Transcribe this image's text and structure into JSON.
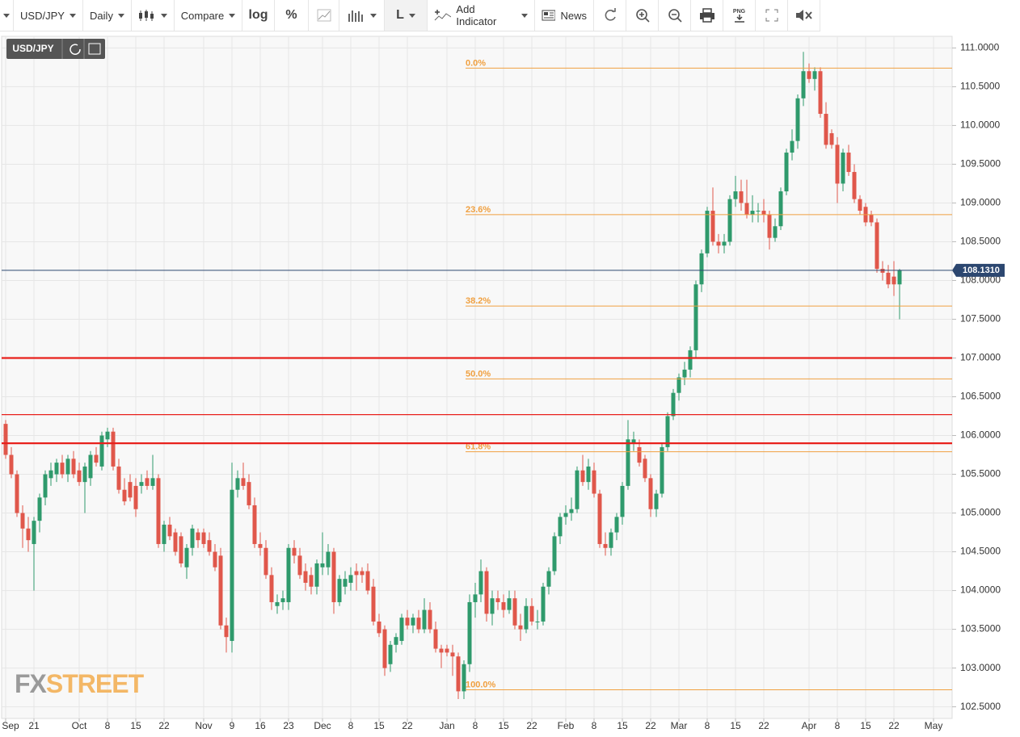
{
  "toolbar": {
    "symbol": "USD/JPY",
    "interval": "Daily",
    "compare": "Compare",
    "log": "log",
    "percent": "%",
    "line": "L",
    "add_indicator": "Add Indicator",
    "news": "News",
    "png": "PNG"
  },
  "watermark": [
    "FX",
    "STREET"
  ],
  "chart_data": {
    "type": "candlestick",
    "symbol": "USD/JPY",
    "up_color": "#2f9a6c",
    "down_color": "#e0574b",
    "grid": true,
    "ylim": [
      102.35,
      111.15
    ],
    "yticks": [
      {
        "value": 102.5,
        "label": "102.5000"
      },
      {
        "value": 103,
        "label": "103.0000"
      },
      {
        "value": 103.5,
        "label": "103.5000"
      },
      {
        "value": 104,
        "label": "104.0000"
      },
      {
        "value": 104.5,
        "label": "104.5000"
      },
      {
        "value": 105,
        "label": "105.0000"
      },
      {
        "value": 105.5,
        "label": "105.5000"
      },
      {
        "value": 106,
        "label": "106.0000"
      },
      {
        "value": 106.5,
        "label": "106.5000"
      },
      {
        "value": 107,
        "label": "107.0000"
      },
      {
        "value": 107.5,
        "label": "107.5000"
      },
      {
        "value": 108,
        "label": "108.0000"
      },
      {
        "value": 108.5,
        "label": "108.5000"
      },
      {
        "value": 109,
        "label": "109.0000"
      },
      {
        "value": 109.5,
        "label": "109.5000"
      },
      {
        "value": 110,
        "label": "110.0000"
      },
      {
        "value": 110.5,
        "label": "110.5000"
      },
      {
        "value": 111,
        "label": "111.0000"
      }
    ],
    "last_price": {
      "value": 108.131,
      "label": "108.1310",
      "color": "#2c4770"
    },
    "horizontal_lines": [
      {
        "value": 107.0,
        "color": "#e8201c",
        "bold": true
      },
      {
        "value": 106.27,
        "color": "#e8201c",
        "bold": false
      },
      {
        "value": 105.9,
        "color": "#e8201c",
        "bold": true
      }
    ],
    "fib_color": "#f0a040",
    "fib_levels": [
      {
        "label": "0.0%",
        "value": 110.74
      },
      {
        "label": "23.6%",
        "value": 108.85
      },
      {
        "label": "38.2%",
        "value": 107.67
      },
      {
        "label": "50.0%",
        "value": 106.73
      },
      {
        "label": "61.8%",
        "value": 105.79
      },
      {
        "label": "100.0%",
        "value": 102.72
      }
    ],
    "categories": [
      "Sep",
      null,
      null,
      null,
      null,
      "21",
      null,
      null,
      null,
      null,
      null,
      null,
      null,
      "Oct",
      null,
      null,
      null,
      null,
      "8",
      null,
      null,
      null,
      null,
      "15",
      null,
      null,
      null,
      null,
      "22",
      null,
      null,
      null,
      null,
      null,
      null,
      "Nov",
      null,
      null,
      null,
      null,
      "9",
      null,
      null,
      null,
      null,
      "16",
      null,
      null,
      null,
      null,
      "23",
      null,
      null,
      null,
      null,
      null,
      "Dec",
      null,
      null,
      null,
      null,
      "8",
      null,
      null,
      null,
      null,
      "15",
      null,
      null,
      null,
      null,
      "22",
      null,
      null,
      null,
      null,
      null,
      null,
      "Jan",
      null,
      null,
      null,
      null,
      "8",
      null,
      null,
      null,
      null,
      "15",
      null,
      null,
      null,
      null,
      "22",
      null,
      null,
      null,
      null,
      null,
      "Feb",
      null,
      null,
      null,
      null,
      "8",
      null,
      null,
      null,
      null,
      "15",
      null,
      null,
      null,
      null,
      "22",
      null,
      null,
      null,
      null,
      "Mar",
      null,
      null,
      null,
      null,
      "8",
      null,
      null,
      null,
      null,
      "15",
      null,
      null,
      null,
      null,
      "22",
      null,
      null,
      null,
      null,
      null,
      null,
      null,
      "Apr",
      null,
      null,
      null,
      null,
      "8",
      null,
      null,
      null,
      null,
      "15",
      null,
      null,
      null,
      null,
      "22",
      null,
      null,
      null,
      null,
      null,
      null,
      "May"
    ],
    "ohlc": [
      [
        106.15,
        106.2,
        105.7,
        105.75
      ],
      [
        105.75,
        105.85,
        105.45,
        105.5
      ],
      [
        105.5,
        105.55,
        104.95,
        105.0
      ],
      [
        105.0,
        105.1,
        104.55,
        104.8
      ],
      [
        104.8,
        104.95,
        104.5,
        104.65
      ],
      [
        104.6,
        104.95,
        104.0,
        104.9
      ],
      [
        104.9,
        105.25,
        104.75,
        105.2
      ],
      [
        105.2,
        105.55,
        105.1,
        105.5
      ],
      [
        105.45,
        105.65,
        105.35,
        105.55
      ],
      [
        105.5,
        105.7,
        105.4,
        105.65
      ],
      [
        105.65,
        105.75,
        105.45,
        105.5
      ],
      [
        105.5,
        105.75,
        105.4,
        105.7
      ],
      [
        105.7,
        105.8,
        105.45,
        105.5
      ],
      [
        105.55,
        105.65,
        105.35,
        105.4
      ],
      [
        105.4,
        105.65,
        105.0,
        105.6
      ],
      [
        105.45,
        105.8,
        105.35,
        105.75
      ],
      [
        105.75,
        105.85,
        105.6,
        105.65
      ],
      [
        105.6,
        106.05,
        105.55,
        106.0
      ],
      [
        105.95,
        106.1,
        105.85,
        106.05
      ],
      [
        106.05,
        106.1,
        105.55,
        105.6
      ],
      [
        105.6,
        105.7,
        105.25,
        105.3
      ],
      [
        105.3,
        105.45,
        105.1,
        105.15
      ],
      [
        105.4,
        105.5,
        105.15,
        105.2
      ],
      [
        105.35,
        105.45,
        104.95,
        105.05
      ],
      [
        105.35,
        105.5,
        105.25,
        105.4
      ],
      [
        105.45,
        105.55,
        105.3,
        105.35
      ],
      [
        105.35,
        105.75,
        105.3,
        105.45
      ],
      [
        105.45,
        105.5,
        104.55,
        104.6
      ],
      [
        104.6,
        104.9,
        104.5,
        104.85
      ],
      [
        104.85,
        104.95,
        104.65,
        104.7
      ],
      [
        104.75,
        104.8,
        104.45,
        104.5
      ],
      [
        104.7,
        104.75,
        104.3,
        104.35
      ],
      [
        104.3,
        104.6,
        104.15,
        104.55
      ],
      [
        104.55,
        104.85,
        104.45,
        104.8
      ],
      [
        104.75,
        104.8,
        104.55,
        104.65
      ],
      [
        104.75,
        104.8,
        104.55,
        104.6
      ],
      [
        104.65,
        104.75,
        104.45,
        104.5
      ],
      [
        104.5,
        104.6,
        104.25,
        104.3
      ],
      [
        104.45,
        104.55,
        103.5,
        103.55
      ],
      [
        103.55,
        103.65,
        103.2,
        103.4
      ],
      [
        103.35,
        105.65,
        103.2,
        105.3
      ],
      [
        105.3,
        105.55,
        105.2,
        105.45
      ],
      [
        105.45,
        105.65,
        105.3,
        105.35
      ],
      [
        105.4,
        105.5,
        105.05,
        105.1
      ],
      [
        105.1,
        105.2,
        104.55,
        104.6
      ],
      [
        104.6,
        104.75,
        104.45,
        104.55
      ],
      [
        104.55,
        104.65,
        104.15,
        104.2
      ],
      [
        104.2,
        104.3,
        103.75,
        103.85
      ],
      [
        103.8,
        103.95,
        103.7,
        103.85
      ],
      [
        103.85,
        104.0,
        103.75,
        103.9
      ],
      [
        103.85,
        104.6,
        103.75,
        104.55
      ],
      [
        104.55,
        104.65,
        104.35,
        104.45
      ],
      [
        104.45,
        104.55,
        104.15,
        104.2
      ],
      [
        104.25,
        104.35,
        104.0,
        104.1
      ],
      [
        104.2,
        104.3,
        103.95,
        104.05
      ],
      [
        104.05,
        104.4,
        103.95,
        104.35
      ],
      [
        104.3,
        104.75,
        104.2,
        104.35
      ],
      [
        104.3,
        104.6,
        104.2,
        104.5
      ],
      [
        104.5,
        104.55,
        103.7,
        103.85
      ],
      [
        103.85,
        104.2,
        103.8,
        104.15
      ],
      [
        104.05,
        104.25,
        103.95,
        104.15
      ],
      [
        104.1,
        104.3,
        104.0,
        104.2
      ],
      [
        104.25,
        104.35,
        104.0,
        104.2
      ],
      [
        104.25,
        104.3,
        104.1,
        104.2
      ],
      [
        104.25,
        104.35,
        103.95,
        104.0
      ],
      [
        104.05,
        104.15,
        103.55,
        103.6
      ],
      [
        103.6,
        103.7,
        103.4,
        103.45
      ],
      [
        103.5,
        103.55,
        102.9,
        103.0
      ],
      [
        103.05,
        103.35,
        102.95,
        103.3
      ],
      [
        103.3,
        103.45,
        103.2,
        103.4
      ],
      [
        103.35,
        103.7,
        103.3,
        103.65
      ],
      [
        103.65,
        103.75,
        103.5,
        103.55
      ],
      [
        103.55,
        103.7,
        103.45,
        103.65
      ],
      [
        103.65,
        103.75,
        103.45,
        103.5
      ],
      [
        103.5,
        103.9,
        103.45,
        103.75
      ],
      [
        103.75,
        103.85,
        103.45,
        103.5
      ],
      [
        103.5,
        103.6,
        103.2,
        103.25
      ],
      [
        103.25,
        103.3,
        103.0,
        103.2
      ],
      [
        103.25,
        103.3,
        103.15,
        103.2
      ],
      [
        103.2,
        103.3,
        102.9,
        103.15
      ],
      [
        103.15,
        103.2,
        102.6,
        102.7
      ],
      [
        102.7,
        103.1,
        102.6,
        103.05
      ],
      [
        103.05,
        103.95,
        102.95,
        103.85
      ],
      [
        103.85,
        104.1,
        103.65,
        103.95
      ],
      [
        103.95,
        104.4,
        103.85,
        104.25
      ],
      [
        104.25,
        104.3,
        103.6,
        103.7
      ],
      [
        103.7,
        104.0,
        103.55,
        103.9
      ],
      [
        103.9,
        104.0,
        103.75,
        103.85
      ],
      [
        103.85,
        103.95,
        103.65,
        103.75
      ],
      [
        103.75,
        104.0,
        103.7,
        103.9
      ],
      [
        103.9,
        104.0,
        103.5,
        103.55
      ],
      [
        103.55,
        103.7,
        103.35,
        103.5
      ],
      [
        103.5,
        103.9,
        103.45,
        103.8
      ],
      [
        103.8,
        103.9,
        103.55,
        103.6
      ],
      [
        103.6,
        103.75,
        103.5,
        103.6
      ],
      [
        103.6,
        104.1,
        103.55,
        104.05
      ],
      [
        104.05,
        104.3,
        103.95,
        104.25
      ],
      [
        104.25,
        104.75,
        104.2,
        104.7
      ],
      [
        104.7,
        105.0,
        104.6,
        104.95
      ],
      [
        104.95,
        105.1,
        104.85,
        105.0
      ],
      [
        105.0,
        105.2,
        104.9,
        105.05
      ],
      [
        105.05,
        105.6,
        105.0,
        105.55
      ],
      [
        105.55,
        105.75,
        105.35,
        105.4
      ],
      [
        105.4,
        105.7,
        105.3,
        105.6
      ],
      [
        105.55,
        105.65,
        105.2,
        105.25
      ],
      [
        105.25,
        105.3,
        104.55,
        104.6
      ],
      [
        104.6,
        104.75,
        104.45,
        104.55
      ],
      [
        104.55,
        104.8,
        104.45,
        104.75
      ],
      [
        104.75,
        105.0,
        104.65,
        104.95
      ],
      [
        104.95,
        105.4,
        104.85,
        105.35
      ],
      [
        105.35,
        106.2,
        105.3,
        105.95
      ],
      [
        105.9,
        106.05,
        105.8,
        105.95
      ],
      [
        105.85,
        105.95,
        105.6,
        105.65
      ],
      [
        105.7,
        105.75,
        105.4,
        105.45
      ],
      [
        105.45,
        105.5,
        104.95,
        105.05
      ],
      [
        105.05,
        105.3,
        104.95,
        105.25
      ],
      [
        105.25,
        105.9,
        105.2,
        105.85
      ],
      [
        105.85,
        106.3,
        105.8,
        106.25
      ],
      [
        106.25,
        106.6,
        106.2,
        106.55
      ],
      [
        106.55,
        106.8,
        106.45,
        106.75
      ],
      [
        106.75,
        106.95,
        106.65,
        106.85
      ],
      [
        106.85,
        107.15,
        106.75,
        107.1
      ],
      [
        107.1,
        108.0,
        107.0,
        107.95
      ],
      [
        107.95,
        108.4,
        107.85,
        108.35
      ],
      [
        108.35,
        108.95,
        108.3,
        108.9
      ],
      [
        108.9,
        109.2,
        108.45,
        108.5
      ],
      [
        108.5,
        108.6,
        108.35,
        108.45
      ],
      [
        108.45,
        108.6,
        108.35,
        108.5
      ],
      [
        108.5,
        109.1,
        108.45,
        109.05
      ],
      [
        109.05,
        109.35,
        108.95,
        109.15
      ],
      [
        109.15,
        109.3,
        108.9,
        109.0
      ],
      [
        109.0,
        109.3,
        108.8,
        108.85
      ],
      [
        108.85,
        109.1,
        108.75,
        108.9
      ],
      [
        108.9,
        109.0,
        108.75,
        108.9
      ],
      [
        108.9,
        109.05,
        108.75,
        108.85
      ],
      [
        108.85,
        108.9,
        108.4,
        108.55
      ],
      [
        108.55,
        108.8,
        108.5,
        108.7
      ],
      [
        108.7,
        109.2,
        108.65,
        109.15
      ],
      [
        109.15,
        109.7,
        109.1,
        109.65
      ],
      [
        109.65,
        109.95,
        109.55,
        109.8
      ],
      [
        109.8,
        110.4,
        109.7,
        110.35
      ],
      [
        110.35,
        110.95,
        110.25,
        110.7
      ],
      [
        110.7,
        110.8,
        110.55,
        110.6
      ],
      [
        110.6,
        110.75,
        110.45,
        110.7
      ],
      [
        110.7,
        110.75,
        110.1,
        110.15
      ],
      [
        110.15,
        110.3,
        109.7,
        109.75
      ],
      [
        109.9,
        109.95,
        109.7,
        109.75
      ],
      [
        109.75,
        109.85,
        109.0,
        109.25
      ],
      [
        109.25,
        109.7,
        109.15,
        109.65
      ],
      [
        109.65,
        109.75,
        109.35,
        109.4
      ],
      [
        109.4,
        109.5,
        109.0,
        109.05
      ],
      [
        109.05,
        109.1,
        108.85,
        108.9
      ],
      [
        108.95,
        109.0,
        108.7,
        108.75
      ],
      [
        108.85,
        108.9,
        108.7,
        108.75
      ],
      [
        108.75,
        108.8,
        108.1,
        108.15
      ],
      [
        108.15,
        108.25,
        108.0,
        108.1
      ],
      [
        108.1,
        108.2,
        107.9,
        107.95
      ],
      [
        108.05,
        108.25,
        107.8,
        107.95
      ],
      [
        107.95,
        108.15,
        107.5,
        108.13
      ],
      null,
      null,
      null,
      null,
      null,
      null
    ]
  }
}
